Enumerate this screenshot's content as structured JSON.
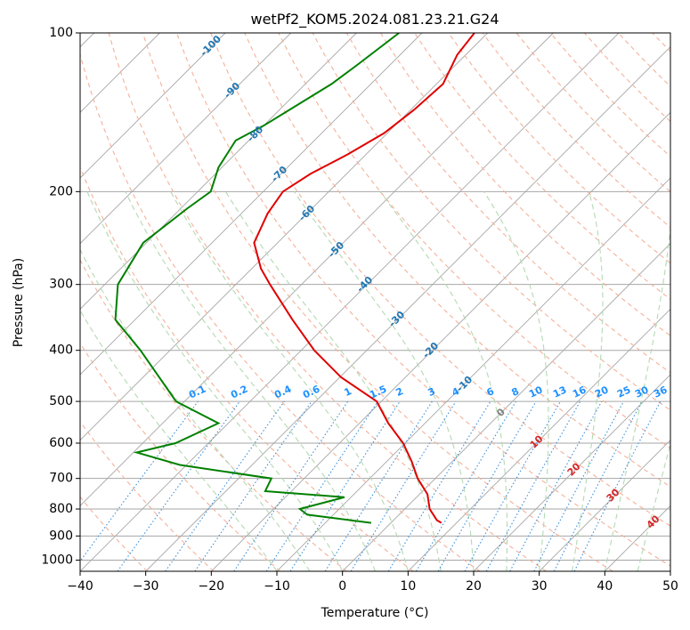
{
  "chart_data": {
    "type": "line",
    "title": "wetPf2_KOM5.2024.081.23.21.G24",
    "xlabel": "Temperature (°C)",
    "ylabel": "Pressure (hPa)",
    "xlim": [
      -40,
      50
    ],
    "ylim": [
      1050,
      100
    ],
    "y_scale": "log",
    "skew": true,
    "grid": true,
    "x_ticks": [
      -40,
      -30,
      -20,
      -10,
      0,
      10,
      20,
      30,
      40,
      50
    ],
    "y_ticks": [
      100,
      200,
      300,
      400,
      500,
      600,
      700,
      800,
      900,
      1000
    ],
    "series": [
      {
        "name": "",
        "color": "#e00000",
        "points": [
          [
            -62.0,
            100
          ],
          [
            -61.3,
            110
          ],
          [
            -59.0,
            125
          ],
          [
            -59.5,
            140
          ],
          [
            -60.5,
            155
          ],
          [
            -62.8,
            170
          ],
          [
            -65.5,
            185
          ],
          [
            -67.0,
            200
          ],
          [
            -66.0,
            220
          ],
          [
            -63.6,
            250
          ],
          [
            -58.6,
            280
          ],
          [
            -54.8,
            300
          ],
          [
            -46.0,
            350
          ],
          [
            -38.0,
            400
          ],
          [
            -29.8,
            450
          ],
          [
            -20.7,
            500
          ],
          [
            -15.6,
            550
          ],
          [
            -10.3,
            600
          ],
          [
            -6.2,
            650
          ],
          [
            -2.7,
            700
          ],
          [
            1.2,
            750
          ],
          [
            3.8,
            800
          ],
          [
            6.6,
            840
          ],
          [
            7.7,
            850
          ]
        ]
      },
      {
        "name": "",
        "color": "#008000",
        "points": [
          [
            -73.5,
            100
          ],
          [
            -75.0,
            115
          ],
          [
            -76.0,
            125
          ],
          [
            -80.0,
            150
          ],
          [
            -82.0,
            160
          ],
          [
            -80.5,
            180
          ],
          [
            -78.0,
            200
          ],
          [
            -79.0,
            215
          ],
          [
            -80.5,
            250
          ],
          [
            -78.0,
            300
          ],
          [
            -73.0,
            350
          ],
          [
            -64.5,
            400
          ],
          [
            -51.3,
            500
          ],
          [
            -41.5,
            550
          ],
          [
            -45.0,
            600
          ],
          [
            -49.5,
            625
          ],
          [
            -41.0,
            660
          ],
          [
            -25.0,
            700
          ],
          [
            -24.0,
            740
          ],
          [
            -11.0,
            760
          ],
          [
            -16.0,
            800
          ],
          [
            -14.0,
            820
          ],
          [
            -3.0,
            850
          ]
        ]
      }
    ],
    "dry_adiabat_labels": [
      "-100",
      "-90",
      "-80",
      "-70",
      "-60",
      "-50",
      "-40",
      "-30",
      "-20",
      "-10"
    ],
    "moist_adiabat_labels": [
      "0",
      "10",
      "20",
      "30",
      "40"
    ],
    "mixing_ratio_labels": [
      "0.1",
      "0.2",
      "0.4",
      "0.6",
      "1",
      "1.5",
      "2",
      "3",
      "4",
      "6",
      "8",
      "10",
      "13",
      "16",
      "20",
      "25",
      "30",
      "36"
    ],
    "colors": {
      "temperature": "#e00000",
      "dewpoint": "#008000",
      "isotherm": "#a6a6a6",
      "dry_adiabat": "#f4b199",
      "moist_adiabat": "#b3d9b3",
      "mixing_ratio": "#3a8fdc",
      "dry_label": "#1f77b4",
      "moist_label_zero": "#808080",
      "moist_label": "#d62728",
      "mixing_label": "#1e90ff"
    }
  }
}
